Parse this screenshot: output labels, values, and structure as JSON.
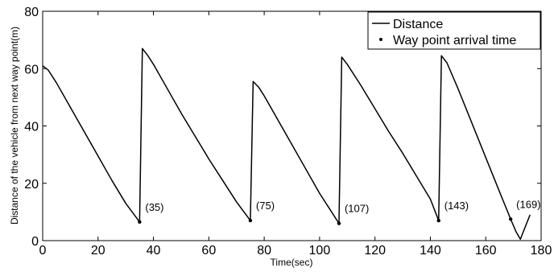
{
  "chart_data": {
    "type": "line",
    "title": "",
    "xlabel": "Time(sec)",
    "ylabel": "Distance of the vehicle from next way point(m)",
    "xlim": [
      0,
      180
    ],
    "ylim": [
      0,
      80
    ],
    "x_ticks": [
      0,
      20,
      40,
      60,
      80,
      100,
      120,
      140,
      160,
      180
    ],
    "y_ticks": [
      0,
      20,
      40,
      60,
      80
    ],
    "x_tick_labels": [
      "0",
      "20",
      "40",
      "60",
      "80",
      "100",
      "120",
      "140",
      "160",
      "180"
    ],
    "y_tick_labels": [
      "0",
      "20",
      "40",
      "60",
      "80"
    ],
    "grid": false,
    "legend_position": "top-right",
    "series": [
      {
        "name": "Distance",
        "style": "line",
        "color": "#000000",
        "points": [
          [
            0,
            61
          ],
          [
            2,
            59.5
          ],
          [
            5,
            55
          ],
          [
            10,
            46.5
          ],
          [
            15,
            38
          ],
          [
            20,
            29.5
          ],
          [
            25,
            21
          ],
          [
            30,
            13
          ],
          [
            35,
            6.5
          ],
          [
            36,
            67
          ],
          [
            38,
            64.5
          ],
          [
            40,
            61.5
          ],
          [
            45,
            53
          ],
          [
            50,
            44.5
          ],
          [
            55,
            36.5
          ],
          [
            60,
            28.5
          ],
          [
            65,
            21
          ],
          [
            70,
            13.5
          ],
          [
            75,
            7
          ],
          [
            76,
            55.5
          ],
          [
            78,
            53.5
          ],
          [
            80,
            50.5
          ],
          [
            85,
            42
          ],
          [
            90,
            33.5
          ],
          [
            95,
            25
          ],
          [
            100,
            16.5
          ],
          [
            104,
            10.5
          ],
          [
            107,
            6
          ],
          [
            108,
            64
          ],
          [
            110,
            61.5
          ],
          [
            115,
            54
          ],
          [
            120,
            46
          ],
          [
            125,
            38
          ],
          [
            130,
            30.5
          ],
          [
            135,
            22.5
          ],
          [
            140,
            14.5
          ],
          [
            143,
            7
          ],
          [
            144,
            64.5
          ],
          [
            146,
            62
          ],
          [
            150,
            53
          ],
          [
            155,
            41
          ],
          [
            160,
            29
          ],
          [
            165,
            17
          ],
          [
            169,
            7.5
          ],
          [
            171,
            3
          ],
          [
            172.5,
            0.5
          ],
          [
            176,
            9
          ]
        ]
      },
      {
        "name": "Way point arrival time",
        "style": "markers",
        "color": "#000000",
        "points": [
          [
            35,
            6.5
          ],
          [
            75,
            7
          ],
          [
            107,
            6
          ],
          [
            143,
            7
          ],
          [
            169,
            7.5
          ]
        ]
      }
    ],
    "annotations": [
      {
        "x": 35,
        "y": 6.5,
        "text": "(35)"
      },
      {
        "x": 75,
        "y": 7,
        "text": "(75)"
      },
      {
        "x": 107,
        "y": 6,
        "text": "(107)"
      },
      {
        "x": 143,
        "y": 7,
        "text": "(143)"
      },
      {
        "x": 169,
        "y": 7.5,
        "text": "(169)"
      }
    ]
  }
}
